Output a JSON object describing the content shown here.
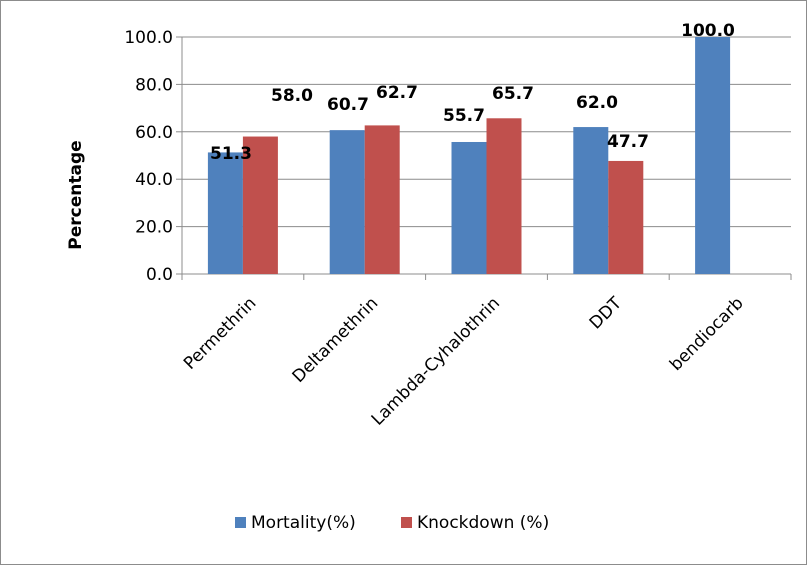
{
  "chart_data": {
    "type": "bar",
    "title": "",
    "xlabel": "",
    "ylabel": "Percentage",
    "ylim": [
      0,
      100
    ],
    "yticks": [
      "0.0",
      "20.0",
      "40.0",
      "60.0",
      "80.0",
      "100.0"
    ],
    "categories": [
      "Permethrin",
      "Deltamethrin",
      "Lambda-Cyhalothrin",
      "DDT",
      "bendiocarb"
    ],
    "series": [
      {
        "name": "Mortality(%)",
        "color": "#4f81bd",
        "values": [
          51.3,
          60.7,
          55.7,
          62.0,
          100.0
        ],
        "labels": [
          "51.3",
          "60.7",
          "55.7",
          "62.0",
          "100.0"
        ]
      },
      {
        "name": "Knockdown (%)",
        "color": "#c0504d",
        "values": [
          58.0,
          62.7,
          65.7,
          47.7,
          null
        ],
        "labels": [
          "58.0",
          "62.7",
          "65.7",
          "47.7",
          null
        ]
      }
    ],
    "grid": "horizontal major",
    "legend": "bottom"
  }
}
